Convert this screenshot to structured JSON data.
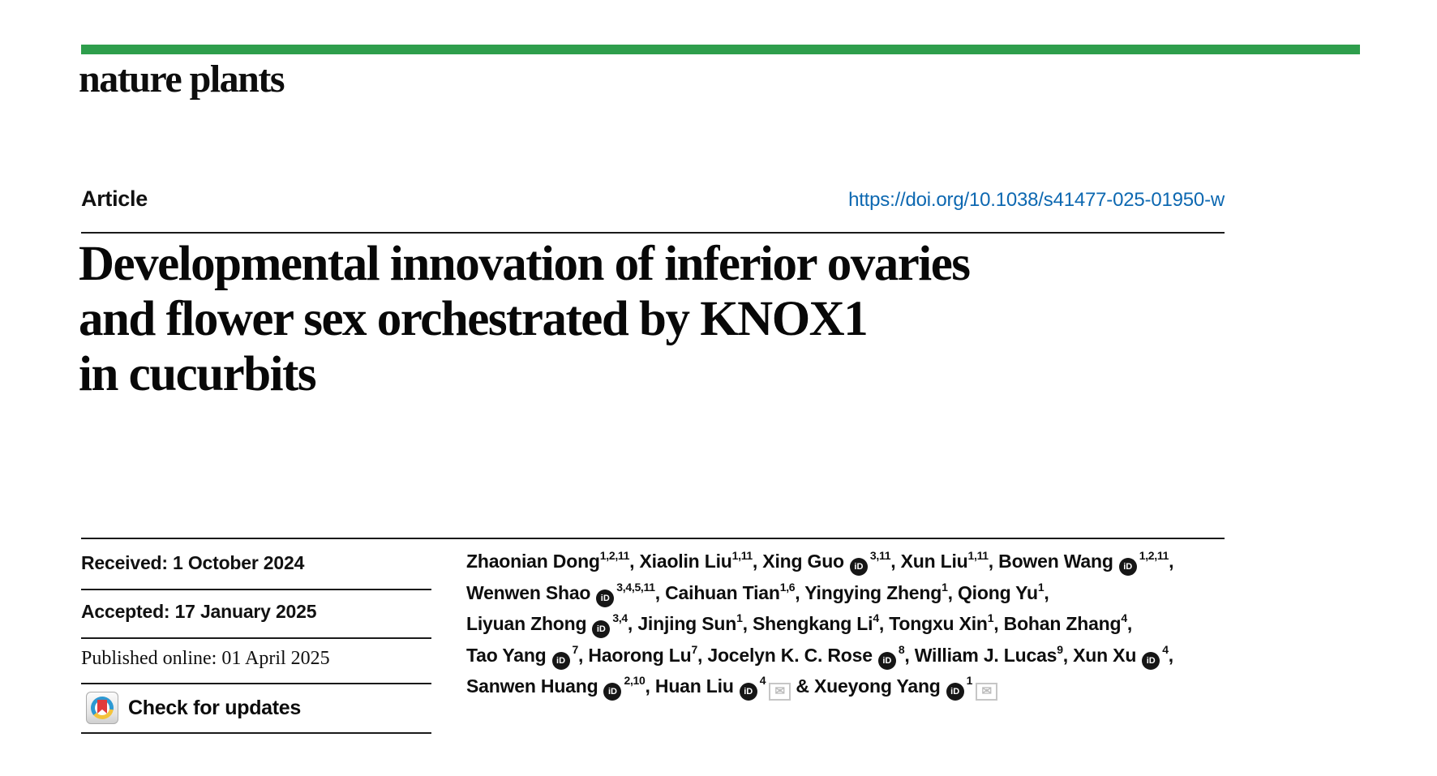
{
  "colors": {
    "accent_green": "#2e9e4c",
    "link_blue": "#0d68b1"
  },
  "journal": {
    "name": "nature plants"
  },
  "article": {
    "type_label": "Article",
    "doi": "https://doi.org/10.1038/s41477-025-01950-w",
    "title_lines": [
      "Developmental innovation of inferior ovaries",
      "and flower sex orchestrated by KNOX1",
      "in cucurbits"
    ]
  },
  "metadata": {
    "received": "Received: 1 October 2024",
    "accepted": "Accepted: 17 January 2025",
    "published_online": "Published online: 01 April 2025",
    "check_updates_label": "Check for updates"
  },
  "authors": {
    "orcid_icon_text": "iD",
    "envelope_icon_char": "✉",
    "lines": [
      [
        {
          "name": "Zhaonian Dong",
          "sup": "1,2,11",
          "orcid": false,
          "env": false,
          "sep": ", "
        },
        {
          "name": "Xiaolin Liu",
          "sup": "1,11",
          "orcid": false,
          "env": false,
          "sep": ", "
        },
        {
          "name": "Xing Guo",
          "sup": "3,11",
          "orcid": true,
          "env": false,
          "sep": ", "
        },
        {
          "name": "Xun Liu",
          "sup": "1,11",
          "orcid": false,
          "env": false,
          "sep": ", "
        },
        {
          "name": "Bowen Wang",
          "sup": "1,2,11",
          "orcid": true,
          "env": false,
          "sep": ","
        }
      ],
      [
        {
          "name": "Wenwen Shao",
          "sup": "3,4,5,11",
          "orcid": true,
          "env": false,
          "sep": ", "
        },
        {
          "name": "Caihuan Tian",
          "sup": "1,6",
          "orcid": false,
          "env": false,
          "sep": ", "
        },
        {
          "name": "Yingying Zheng",
          "sup": "1",
          "orcid": false,
          "env": false,
          "sep": ", "
        },
        {
          "name": "Qiong Yu",
          "sup": "1",
          "orcid": false,
          "env": false,
          "sep": ","
        }
      ],
      [
        {
          "name": "Liyuan Zhong",
          "sup": "3,4",
          "orcid": true,
          "env": false,
          "sep": ", "
        },
        {
          "name": "Jinjing Sun",
          "sup": "1",
          "orcid": false,
          "env": false,
          "sep": ", "
        },
        {
          "name": "Shengkang Li",
          "sup": "4",
          "orcid": false,
          "env": false,
          "sep": ", "
        },
        {
          "name": "Tongxu Xin",
          "sup": "1",
          "orcid": false,
          "env": false,
          "sep": ", "
        },
        {
          "name": "Bohan Zhang",
          "sup": "4",
          "orcid": false,
          "env": false,
          "sep": ","
        }
      ],
      [
        {
          "name": "Tao Yang",
          "sup": "7",
          "orcid": true,
          "env": false,
          "sep": ", "
        },
        {
          "name": "Haorong Lu",
          "sup": "7",
          "orcid": false,
          "env": false,
          "sep": ", "
        },
        {
          "name": "Jocelyn K. C. Rose",
          "sup": "8",
          "orcid": true,
          "env": false,
          "sep": ", "
        },
        {
          "name": "William J. Lucas",
          "sup": "9",
          "orcid": false,
          "env": false,
          "sep": ", "
        },
        {
          "name": "Xun Xu",
          "sup": "4",
          "orcid": true,
          "env": false,
          "sep": ","
        }
      ],
      [
        {
          "name": "Sanwen Huang",
          "sup": "2,10",
          "orcid": true,
          "env": false,
          "sep": ", "
        },
        {
          "name": "Huan Liu",
          "sup": "4",
          "orcid": true,
          "env": true,
          "sep": " & "
        },
        {
          "name": "Xueyong Yang",
          "sup": "1",
          "orcid": true,
          "env": true,
          "sep": ""
        }
      ]
    ]
  }
}
